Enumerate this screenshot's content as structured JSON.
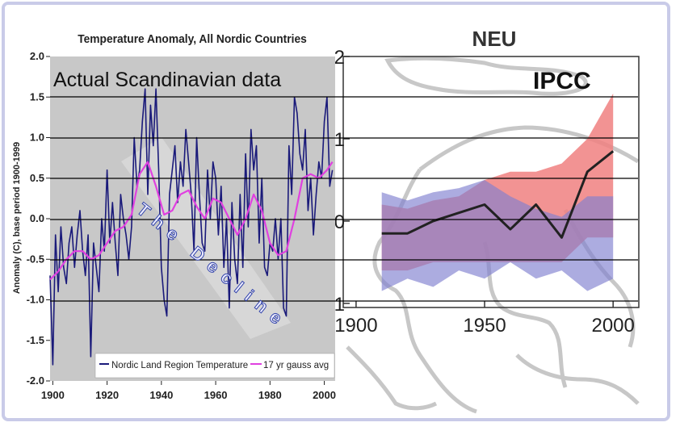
{
  "colors": {
    "frame_border": "#c9cbe8",
    "left_bg": "#c8c8c8",
    "nordic_line": "#1a1a7a",
    "gauss_line": "#e040e0",
    "ipcc_red": "#f08080",
    "ipcc_blue": "#8080d0",
    "ipcc_line": "#222222"
  },
  "overlay": {
    "actual_label": "Actual Scandinavian data",
    "ipcc_label": "IPCC",
    "decline_label": "The Decline"
  },
  "chart_data": [
    {
      "type": "line",
      "title": "Temperature Anomaly, All Nordic Countries",
      "ylabel": "Anomaly (C), base period 1900-1999",
      "xlabel": "",
      "xlim": [
        1899,
        2004
      ],
      "ylim": [
        -2.0,
        2.0
      ],
      "xticks": [
        "1900",
        "1920",
        "1940",
        "1960",
        "1980",
        "2000"
      ],
      "yticks": [
        "2.0",
        "1.5",
        "1.0",
        "0.5",
        "0.0",
        "-0.5",
        "-1.0",
        "-1.5",
        "-2.0"
      ],
      "legend": "bottom-right",
      "grid": false,
      "series": [
        {
          "name": "Nordic Land Region Temperature",
          "color": "#1a1a7a",
          "x": [
            1899,
            1900,
            1901,
            1902,
            1903,
            1904,
            1905,
            1906,
            1907,
            1908,
            1909,
            1910,
            1911,
            1912,
            1913,
            1914,
            1915,
            1916,
            1917,
            1918,
            1919,
            1920,
            1921,
            1922,
            1923,
            1924,
            1925,
            1926,
            1927,
            1928,
            1929,
            1930,
            1931,
            1932,
            1933,
            1934,
            1935,
            1936,
            1937,
            1938,
            1939,
            1940,
            1941,
            1942,
            1943,
            1944,
            1945,
            1946,
            1947,
            1948,
            1949,
            1950,
            1951,
            1952,
            1953,
            1954,
            1955,
            1956,
            1957,
            1958,
            1959,
            1960,
            1961,
            1962,
            1963,
            1964,
            1965,
            1966,
            1967,
            1968,
            1969,
            1970,
            1971,
            1972,
            1973,
            1974,
            1975,
            1976,
            1977,
            1978,
            1979,
            1980,
            1981,
            1982,
            1983,
            1984,
            1985,
            1986,
            1987,
            1988,
            1989,
            1990,
            1991,
            1992,
            1993,
            1994,
            1995,
            1996,
            1997,
            1998,
            1999,
            2000,
            2001,
            2002,
            2003
          ],
          "values": [
            -0.7,
            -1.8,
            -0.2,
            -0.9,
            -0.1,
            -0.6,
            -0.8,
            -0.3,
            -0.1,
            -0.6,
            -0.2,
            0.1,
            -0.4,
            -0.7,
            -0.2,
            -1.7,
            -0.3,
            -0.6,
            -0.9,
            0.0,
            -0.4,
            0.6,
            -0.3,
            0.2,
            -0.3,
            -0.7,
            0.3,
            0.0,
            -0.2,
            -0.5,
            -0.1,
            1.0,
            0.4,
            0.6,
            1.2,
            1.6,
            0.3,
            1.4,
            0.9,
            1.6,
            0.6,
            -0.6,
            -1.0,
            -1.2,
            0.3,
            0.6,
            0.9,
            0.2,
            0.7,
            0.4,
            1.1,
            0.7,
            0.3,
            -0.4,
            1.0,
            0.3,
            -0.3,
            -0.4,
            0.6,
            0.0,
            0.7,
            0.5,
            -0.2,
            0.4,
            -0.6,
            0.0,
            -1.1,
            0.2,
            -0.5,
            -0.8,
            0.3,
            -0.6,
            0.8,
            -0.1,
            1.1,
            0.6,
            0.9,
            -0.3,
            0.5,
            -0.6,
            -0.7,
            -0.3,
            -0.4,
            0.0,
            -0.5,
            0.0,
            -1.1,
            -1.2,
            0.9,
            0.3,
            1.5,
            1.3,
            0.8,
            0.6,
            1.1,
            0.1,
            0.5,
            -0.2,
            0.3,
            0.7,
            0.5,
            1.2,
            1.5,
            0.4,
            0.6
          ]
        },
        {
          "name": "17 yr gauss avg",
          "color": "#e040e0",
          "x": [
            1899,
            1902,
            1905,
            1908,
            1911,
            1914,
            1917,
            1920,
            1923,
            1926,
            1929,
            1932,
            1935,
            1938,
            1941,
            1944,
            1947,
            1950,
            1953,
            1956,
            1959,
            1962,
            1965,
            1968,
            1971,
            1974,
            1977,
            1980,
            1983,
            1986,
            1989,
            1992,
            1995,
            1998,
            2001,
            2003
          ],
          "values": [
            -0.75,
            -0.65,
            -0.5,
            -0.4,
            -0.4,
            -0.5,
            -0.45,
            -0.3,
            -0.15,
            -0.1,
            0.05,
            0.55,
            0.7,
            0.4,
            0.05,
            0.1,
            0.3,
            0.35,
            0.15,
            0.0,
            0.25,
            0.2,
            0.0,
            -0.2,
            0.0,
            0.3,
            0.1,
            -0.3,
            -0.45,
            -0.4,
            0.0,
            0.5,
            0.55,
            0.5,
            0.6,
            0.7
          ]
        }
      ]
    },
    {
      "type": "area",
      "title": "NEU",
      "xlabel": "",
      "ylabel": "",
      "xlim": [
        1895,
        2010
      ],
      "ylim": [
        -1.05,
        2.0
      ],
      "xticks": [
        "1900",
        "1950",
        "2000"
      ],
      "yticks": [
        "2",
        "1",
        "0",
        "-1"
      ],
      "grid": false,
      "series": [
        {
          "name": "",
          "color": "#f08080",
          "x": [
            1910,
            1920,
            1930,
            1940,
            1950,
            1960,
            1970,
            1980,
            1990,
            2000
          ],
          "upper": [
            0.2,
            0.15,
            0.25,
            0.3,
            0.5,
            0.6,
            0.6,
            0.7,
            1.0,
            1.55
          ],
          "lower": [
            -0.6,
            -0.6,
            -0.5,
            -0.5,
            -0.5,
            -0.5,
            -0.5,
            -0.5,
            -0.2,
            -0.2
          ]
        },
        {
          "name": "",
          "color": "#8080d0",
          "x": [
            1910,
            1920,
            1930,
            1940,
            1950,
            1960,
            1970,
            1980,
            1990,
            2000
          ],
          "upper": [
            0.35,
            0.25,
            0.35,
            0.4,
            0.5,
            0.3,
            0.15,
            0.05,
            0.3,
            0.3
          ],
          "lower": [
            -0.85,
            -0.7,
            -0.8,
            -0.6,
            -0.7,
            -0.5,
            -0.7,
            -0.6,
            -0.85,
            -0.7
          ]
        },
        {
          "name": "",
          "color": "#222222",
          "x": [
            1910,
            1920,
            1930,
            1940,
            1950,
            1960,
            1970,
            1980,
            1990,
            2000
          ],
          "values": [
            -0.15,
            -0.15,
            0.0,
            0.1,
            0.2,
            -0.1,
            0.2,
            -0.2,
            0.6,
            0.85
          ]
        }
      ]
    }
  ]
}
